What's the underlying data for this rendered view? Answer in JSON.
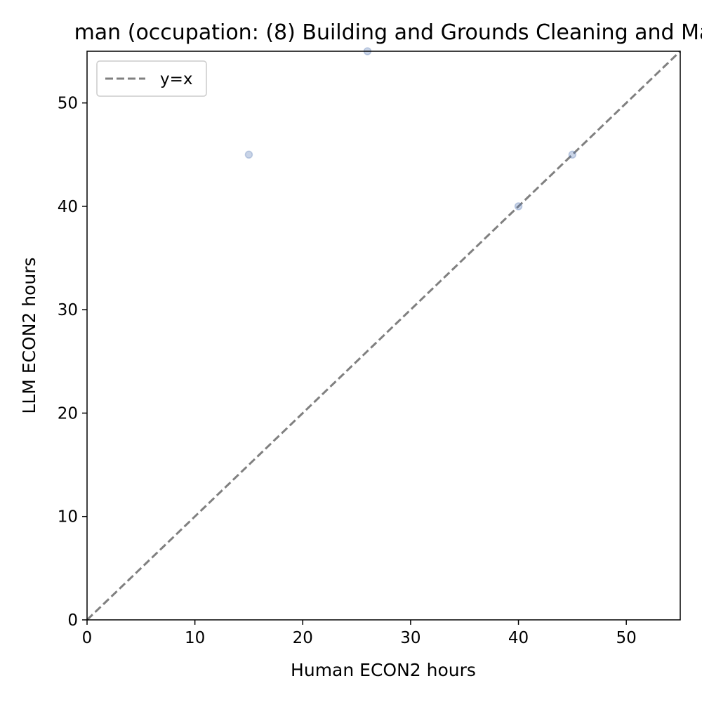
{
  "chart_data": {
    "type": "scatter",
    "title": "man (occupation: (8) Building and Grounds Cleaning and Ma",
    "xlabel": "Human ECON2 hours",
    "ylabel": "LLM ECON2 hours",
    "xlim": [
      0,
      55
    ],
    "ylim": [
      0,
      55
    ],
    "xticks": [
      0,
      10,
      20,
      30,
      40,
      50
    ],
    "yticks": [
      0,
      10,
      20,
      30,
      40,
      50
    ],
    "grid": false,
    "legend_position": "top-left",
    "legend": [
      {
        "label": "y=x",
        "style": "dashed-line",
        "color": "#808080"
      }
    ],
    "reference_line": {
      "label": "y=x",
      "from": [
        0,
        0
      ],
      "to": [
        55,
        55
      ],
      "color": "#808080",
      "style": "dashed"
    },
    "series": [
      {
        "marker_color": "#4c72b0",
        "points": [
          {
            "x": 15,
            "y": 45
          },
          {
            "x": 26,
            "y": 55
          },
          {
            "x": 40,
            "y": 40
          },
          {
            "x": 45,
            "y": 45
          }
        ]
      }
    ]
  }
}
